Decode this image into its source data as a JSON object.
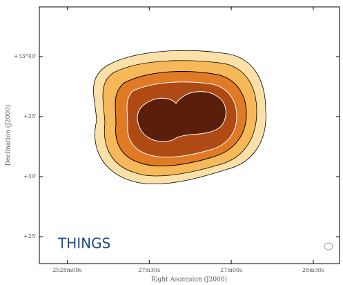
{
  "chart_data": {
    "type": "image",
    "xlabel": "Right Ascension (J2000)",
    "ylabel": "Declination (J2000)",
    "annotation": "THINGS",
    "xlim": [
      28.17,
      26.34
    ],
    "xticks": [
      {
        "value": 28.0,
        "label": "2h28m00s"
      },
      {
        "value": 27.5,
        "label": "27m30s"
      },
      {
        "value": 27.0,
        "label": "27m00s"
      },
      {
        "value": 26.5,
        "label": "26m30s"
      }
    ],
    "ylim": [
      22.76,
      44.14
    ],
    "yticks": [
      {
        "value": 40,
        "label": "+33°40'"
      },
      {
        "value": 35,
        "label": "+35'"
      },
      {
        "value": 30,
        "label": "+30'"
      },
      {
        "value": 25,
        "label": "+25'"
      }
    ]
  }
}
